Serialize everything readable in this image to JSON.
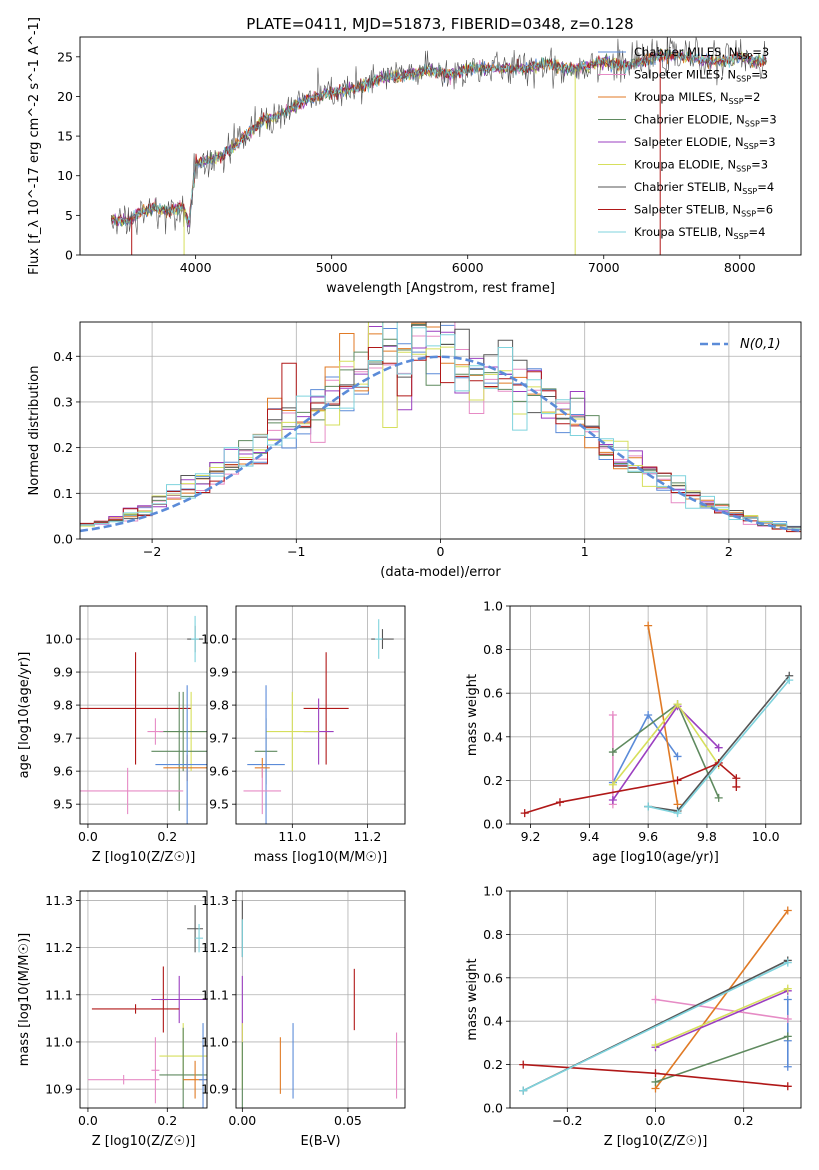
{
  "figure": {
    "title": "PLATE=0411, MJD=51873, FIBERID=0348, z=0.128"
  },
  "colors": {
    "blue": "#5b8bd8",
    "pink": "#e68bc5",
    "orange": "#e07a25",
    "green": "#5f8a5f",
    "purple": "#9b3fc0",
    "yellow": "#d6df5c",
    "gray": "#555555",
    "red": "#b01818",
    "cyan": "#7fd3dd",
    "grid": "#b0b0b0"
  },
  "chart_data": [
    {
      "id": "spectrum",
      "type": "line",
      "xlabel": "wavelength [Angstrom, rest frame]",
      "ylabel": "Flux [f_λ 10^-17 erg cm^-2 s^-1 A^-1]",
      "xlim": [
        3150,
        8450
      ],
      "ylim": [
        0,
        27.5
      ],
      "xticks": [
        4000,
        5000,
        6000,
        7000,
        8000
      ],
      "yticks": [
        0,
        5,
        10,
        15,
        20,
        25
      ],
      "legend_position": "top-right",
      "continuum": [
        [
          3380,
          4.5
        ],
        [
          3500,
          4.3
        ],
        [
          3600,
          5.5
        ],
        [
          3700,
          6.0
        ],
        [
          3800,
          5.5
        ],
        [
          3900,
          6.3
        ],
        [
          3950,
          4.0
        ],
        [
          4000,
          11.5
        ],
        [
          4100,
          12.0
        ],
        [
          4200,
          12.5
        ],
        [
          4300,
          14.0
        ],
        [
          4400,
          15.5
        ],
        [
          4500,
          17.0
        ],
        [
          4600,
          17.5
        ],
        [
          4700,
          18.5
        ],
        [
          4800,
          19.5
        ],
        [
          4900,
          20.0
        ],
        [
          5000,
          20.5
        ],
        [
          5100,
          20.8
        ],
        [
          5200,
          21.0
        ],
        [
          5300,
          21.8
        ],
        [
          5400,
          22.5
        ],
        [
          5500,
          22.5
        ],
        [
          5600,
          23.0
        ],
        [
          5700,
          23.3
        ],
        [
          5800,
          23.0
        ],
        [
          5900,
          22.8
        ],
        [
          6000,
          23.5
        ],
        [
          6100,
          23.5
        ],
        [
          6200,
          23.5
        ],
        [
          6300,
          23.5
        ],
        [
          6400,
          23.5
        ],
        [
          6500,
          23.8
        ],
        [
          6600,
          24.2
        ],
        [
          6700,
          23.5
        ],
        [
          6800,
          23.5
        ],
        [
          6900,
          24.0
        ],
        [
          7000,
          24.5
        ],
        [
          7100,
          24.0
        ],
        [
          7200,
          24.0
        ],
        [
          7300,
          24.5
        ],
        [
          7400,
          25.0
        ],
        [
          7500,
          25.2
        ],
        [
          7600,
          25.0
        ],
        [
          7700,
          24.8
        ],
        [
          7800,
          24.5
        ],
        [
          7900,
          24.5
        ],
        [
          8000,
          25.0
        ],
        [
          8100,
          24.5
        ],
        [
          8200,
          24.5
        ]
      ],
      "series": [
        {
          "name": "Chabrier MILES, N_SSP=3",
          "color_key": "blue"
        },
        {
          "name": "Salpeter MILES, N_SSP=3",
          "color_key": "pink"
        },
        {
          "name": "Kroupa MILES, N_SSP=2",
          "color_key": "orange"
        },
        {
          "name": "Chabrier ELODIE, N_SSP=3",
          "color_key": "green"
        },
        {
          "name": "Salpeter ELODIE, N_SSP=3",
          "color_key": "purple"
        },
        {
          "name": "Kroupa ELODIE, N_SSP=3",
          "color_key": "yellow"
        },
        {
          "name": "Chabrier STELIB, N_SSP=4",
          "color_key": "gray"
        },
        {
          "name": "Salpeter STELIB, N_SSP=6",
          "color_key": "red"
        },
        {
          "name": "Kroupa STELIB, N_SSP=4",
          "color_key": "cyan"
        }
      ]
    },
    {
      "id": "residuals",
      "type": "histogram",
      "xlabel": "(data-model)/error",
      "ylabel": "Normed distribution",
      "xlim": [
        -2.5,
        2.5
      ],
      "ylim": [
        0,
        0.475
      ],
      "xticks": [
        -2,
        -1,
        0,
        1,
        2
      ],
      "yticks": [
        0.0,
        0.1,
        0.2,
        0.3,
        0.4
      ],
      "bin_width": 0.1,
      "curve_label": "N(0,1)",
      "legend_position": "top-right"
    },
    {
      "id": "age_vs_Z",
      "type": "errorbar",
      "xlabel": "Z [log10(Z/Z☉)]",
      "ylabel": "age  [log10(age/yr)]",
      "xlim": [
        -0.02,
        0.3
      ],
      "ylim": [
        9.44,
        10.1
      ],
      "xticks": [
        0.0,
        0.2
      ],
      "yticks": [
        9.5,
        9.6,
        9.7,
        9.8,
        9.9,
        10.0
      ],
      "points": [
        {
          "x": 0.27,
          "y": 10.0,
          "xerr": 0.02,
          "yerr": 0.04,
          "color_key": "gray"
        },
        {
          "x": 0.27,
          "y": 10.0,
          "xerr": 0.01,
          "yerr": 0.07,
          "color_key": "cyan"
        },
        {
          "x": 0.12,
          "y": 9.79,
          "xerr": 0.14,
          "yerr": 0.17,
          "color_key": "red"
        },
        {
          "x": 0.26,
          "y": 9.72,
          "xerr": 0.06,
          "yerr": 0.12,
          "color_key": "yellow"
        },
        {
          "x": 0.24,
          "y": 9.72,
          "xerr": 0.06,
          "yerr": 0.12,
          "color_key": "green"
        },
        {
          "x": 0.23,
          "y": 9.66,
          "xerr": 0.07,
          "yerr": 0.18,
          "color_key": "green"
        },
        {
          "x": 0.25,
          "y": 9.61,
          "xerr": 0.06,
          "yerr": 0.04,
          "color_key": "orange"
        },
        {
          "x": 0.25,
          "y": 9.62,
          "xerr": 0.08,
          "yerr": 0.24,
          "color_key": "blue"
        },
        {
          "x": 0.17,
          "y": 9.72,
          "xerr": 0.02,
          "yerr": 0.04,
          "color_key": "pink"
        },
        {
          "x": 0.1,
          "y": 9.54,
          "xerr": 0.14,
          "yerr": 0.07,
          "color_key": "pink"
        }
      ]
    },
    {
      "id": "age_vs_mass",
      "type": "errorbar",
      "xlabel": "mass [log10(M/M☉)]",
      "xlim": [
        10.85,
        11.3
      ],
      "ylim": [
        9.44,
        10.1
      ],
      "xticks": [
        11.0,
        11.2
      ],
      "yticks": [
        9.5,
        9.6,
        9.7,
        9.8,
        9.9,
        10.0
      ],
      "points": [
        {
          "x": 11.24,
          "y": 10.0,
          "xerr": 0.03,
          "yerr": 0.03,
          "color_key": "gray"
        },
        {
          "x": 11.23,
          "y": 10.0,
          "xerr": 0.01,
          "yerr": 0.06,
          "color_key": "cyan"
        },
        {
          "x": 11.09,
          "y": 9.79,
          "xerr": 0.06,
          "yerr": 0.17,
          "color_key": "red"
        },
        {
          "x": 11.07,
          "y": 9.72,
          "xerr": 0.04,
          "yerr": 0.1,
          "color_key": "purple"
        },
        {
          "x": 11.0,
          "y": 9.72,
          "xerr": 0.07,
          "yerr": 0.12,
          "color_key": "yellow"
        },
        {
          "x": 10.93,
          "y": 9.66,
          "xerr": 0.03,
          "yerr": 0.1,
          "color_key": "green"
        },
        {
          "x": 10.93,
          "y": 9.62,
          "xerr": 0.05,
          "yerr": 0.24,
          "color_key": "blue"
        },
        {
          "x": 10.92,
          "y": 9.61,
          "xerr": 0.02,
          "yerr": 0.03,
          "color_key": "orange"
        },
        {
          "x": 10.92,
          "y": 9.54,
          "xerr": 0.05,
          "yerr": 0.07,
          "color_key": "pink"
        }
      ]
    },
    {
      "id": "weight_vs_age",
      "type": "line",
      "xlabel": "age  [log10(age/yr)]",
      "ylabel": "mass weight",
      "xlim": [
        9.13,
        10.12
      ],
      "ylim": [
        0,
        1.0
      ],
      "xticks": [
        9.2,
        9.4,
        9.6,
        9.8,
        10.0
      ],
      "yticks": [
        0.0,
        0.2,
        0.4,
        0.6,
        0.8,
        1.0
      ],
      "series": [
        {
          "name": "Chabrier MILES",
          "color_key": "blue",
          "points": [
            [
              9.48,
              0.19
            ],
            [
              9.6,
              0.5
            ],
            [
              9.7,
              0.31
            ]
          ]
        },
        {
          "name": "Salpeter MILES",
          "color_key": "pink",
          "points": [
            [
              9.48,
              0.5
            ],
            [
              9.48,
              0.09
            ]
          ]
        },
        {
          "name": "Kroupa MILES",
          "color_key": "orange",
          "points": [
            [
              9.6,
              0.91
            ],
            [
              9.7,
              0.09
            ]
          ]
        },
        {
          "name": "Chabrier ELODIE",
          "color_key": "green",
          "points": [
            [
              9.48,
              0.33
            ],
            [
              9.7,
              0.55
            ],
            [
              9.84,
              0.12
            ]
          ]
        },
        {
          "name": "Salpeter ELODIE",
          "color_key": "purple",
          "points": [
            [
              9.48,
              0.11
            ],
            [
              9.7,
              0.54
            ],
            [
              9.84,
              0.35
            ]
          ]
        },
        {
          "name": "Kroupa ELODIE",
          "color_key": "yellow",
          "points": [
            [
              9.48,
              0.18
            ],
            [
              9.7,
              0.55
            ],
            [
              9.84,
              0.27
            ]
          ]
        },
        {
          "name": "Chabrier STELIB",
          "color_key": "gray",
          "points": [
            [
              9.6,
              0.08
            ],
            [
              9.7,
              0.06
            ],
            [
              10.08,
              0.68
            ]
          ]
        },
        {
          "name": "Salpeter STELIB",
          "color_key": "red",
          "points": [
            [
              9.18,
              0.05
            ],
            [
              9.3,
              0.1
            ],
            [
              9.7,
              0.2
            ],
            [
              9.84,
              0.28
            ],
            [
              9.9,
              0.21
            ],
            [
              9.9,
              0.17
            ]
          ]
        },
        {
          "name": "Kroupa STELIB",
          "color_key": "cyan",
          "points": [
            [
              9.6,
              0.08
            ],
            [
              9.7,
              0.05
            ],
            [
              10.08,
              0.66
            ]
          ]
        }
      ]
    },
    {
      "id": "mass_vs_Z",
      "type": "errorbar",
      "xlabel": "Z [log10(Z/Z☉)]",
      "ylabel": "mass [log10(M/M☉)]",
      "xlim": [
        -0.02,
        0.3
      ],
      "ylim": [
        10.86,
        11.32
      ],
      "xticks": [
        0.0,
        0.2
      ],
      "yticks": [
        10.9,
        11.0,
        11.1,
        11.2,
        11.3
      ],
      "points": [
        {
          "x": 0.27,
          "y": 11.24,
          "xerr": 0.02,
          "yerr": 0.05,
          "color_key": "gray"
        },
        {
          "x": 0.28,
          "y": 11.22,
          "xerr": 0.01,
          "yerr": 0.03,
          "color_key": "cyan"
        },
        {
          "x": 0.19,
          "y": 11.09,
          "xerr": 0.01,
          "yerr": 0.07,
          "color_key": "red"
        },
        {
          "x": 0.23,
          "y": 11.09,
          "xerr": 0.07,
          "yerr": 0.05,
          "color_key": "purple"
        },
        {
          "x": 0.12,
          "y": 11.07,
          "xerr": 0.11,
          "yerr": 0.01,
          "color_key": "red"
        },
        {
          "x": 0.24,
          "y": 10.97,
          "xerr": 0.06,
          "yerr": 0.07,
          "color_key": "yellow"
        },
        {
          "x": 0.24,
          "y": 10.93,
          "xerr": 0.06,
          "yerr": 0.1,
          "color_key": "green"
        },
        {
          "x": 0.27,
          "y": 10.92,
          "xerr": 0.03,
          "yerr": 0.04,
          "color_key": "orange"
        },
        {
          "x": 0.29,
          "y": 10.92,
          "xerr": 0.01,
          "yerr": 0.12,
          "color_key": "blue"
        },
        {
          "x": 0.09,
          "y": 10.92,
          "xerr": 0.09,
          "yerr": 0.01,
          "color_key": "pink"
        },
        {
          "x": 0.17,
          "y": 10.94,
          "xerr": 0.01,
          "yerr": 0.07,
          "color_key": "pink"
        }
      ]
    },
    {
      "id": "mass_vs_EBV",
      "type": "errorbar",
      "xlabel": "E(B-V)",
      "xlim": [
        -0.003,
        0.077
      ],
      "ylim": [
        10.86,
        11.32
      ],
      "xticks": [
        0.0,
        0.05
      ],
      "yticks": [
        10.9,
        11.0,
        11.1,
        11.2,
        11.3
      ],
      "points": [
        {
          "x": 0.0,
          "y": 11.24,
          "xerr": 0,
          "yerr": 0.06,
          "color_key": "gray"
        },
        {
          "x": 0.0,
          "y": 11.22,
          "xerr": 0,
          "yerr": 0.04,
          "color_key": "cyan"
        },
        {
          "x": 0.0,
          "y": 11.07,
          "xerr": 0,
          "yerr": 0.07,
          "color_key": "purple"
        },
        {
          "x": 0.0,
          "y": 10.97,
          "xerr": 0,
          "yerr": 0.07,
          "color_key": "yellow"
        },
        {
          "x": 0.0,
          "y": 10.93,
          "xerr": 0,
          "yerr": 0.07,
          "color_key": "green"
        },
        {
          "x": 0.018,
          "y": 10.95,
          "xerr": 0,
          "yerr": 0.06,
          "color_key": "orange"
        },
        {
          "x": 0.024,
          "y": 10.96,
          "xerr": 0,
          "yerr": 0.08,
          "color_key": "blue"
        },
        {
          "x": 0.053,
          "y": 11.09,
          "xerr": 0,
          "yerr": 0.065,
          "color_key": "red"
        },
        {
          "x": 0.073,
          "y": 10.95,
          "xerr": 0,
          "yerr": 0.07,
          "color_key": "pink"
        }
      ]
    },
    {
      "id": "weight_vs_Z",
      "type": "line",
      "xlabel": "Z [log10(Z/Z☉)]",
      "ylabel": "mass weight",
      "xlim": [
        -0.33,
        0.33
      ],
      "ylim": [
        0,
        1.0
      ],
      "xticks": [
        -0.2,
        0.0,
        0.2
      ],
      "yticks": [
        0.0,
        0.2,
        0.4,
        0.6,
        0.8,
        1.0
      ],
      "series": [
        {
          "name": "Chabrier MILES",
          "color_key": "blue",
          "points": [
            [
              0.3,
              0.19
            ],
            [
              0.3,
              0.5
            ],
            [
              0.3,
              0.31
            ]
          ]
        },
        {
          "name": "Salpeter MILES",
          "color_key": "pink",
          "points": [
            [
              0.0,
              0.5
            ],
            [
              0.3,
              0.41
            ]
          ]
        },
        {
          "name": "Kroupa MILES",
          "color_key": "orange",
          "points": [
            [
              0.0,
              0.09
            ],
            [
              0.3,
              0.91
            ]
          ]
        },
        {
          "name": "Chabrier ELODIE",
          "color_key": "green",
          "points": [
            [
              0.0,
              0.12
            ],
            [
              0.3,
              0.33
            ]
          ]
        },
        {
          "name": "Salpeter ELODIE",
          "color_key": "purple",
          "points": [
            [
              0.0,
              0.28
            ],
            [
              0.3,
              0.54
            ]
          ]
        },
        {
          "name": "Kroupa ELODIE",
          "color_key": "yellow",
          "points": [
            [
              0.0,
              0.29
            ],
            [
              0.3,
              0.55
            ]
          ]
        },
        {
          "name": "Chabrier STELIB",
          "color_key": "gray",
          "points": [
            [
              -0.3,
              0.08
            ],
            [
              0.3,
              0.68
            ]
          ]
        },
        {
          "name": "Salpeter STELIB",
          "color_key": "red",
          "points": [
            [
              -0.3,
              0.2
            ],
            [
              0.0,
              0.16
            ],
            [
              0.3,
              0.1
            ]
          ]
        },
        {
          "name": "Kroupa STELIB",
          "color_key": "cyan",
          "points": [
            [
              -0.3,
              0.08
            ],
            [
              0.3,
              0.67
            ]
          ]
        }
      ]
    }
  ]
}
